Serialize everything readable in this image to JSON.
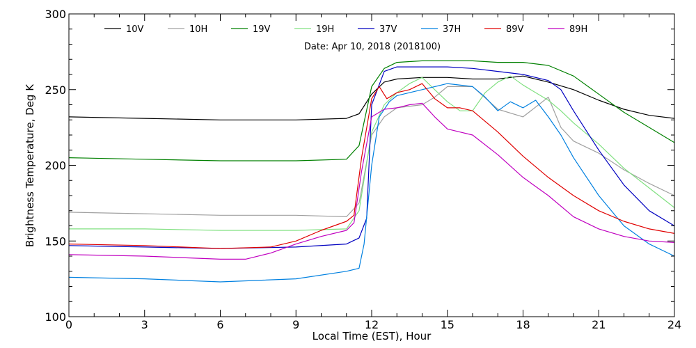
{
  "chart_data": {
    "type": "line",
    "title": "",
    "annotation": "Date: Apr 10, 2018 (2018100)",
    "xlabel": "Local Time (EST), Hour",
    "ylabel": "Brightness Temperature, Deg K",
    "xlim": [
      0,
      24
    ],
    "ylim": [
      100,
      300
    ],
    "xticks": [
      0,
      3,
      6,
      9,
      12,
      15,
      18,
      21,
      24
    ],
    "yticks": [
      100,
      150,
      200,
      250,
      300
    ],
    "grid": false,
    "legend_position": "top",
    "series": [
      {
        "name": "10V",
        "color": "#000000",
        "x": [
          0,
          3,
          6,
          9,
          11,
          11.5,
          12,
          12.5,
          13,
          14,
          15,
          16,
          17,
          18,
          19,
          20,
          21,
          22,
          23,
          24
        ],
        "y": [
          232,
          231,
          230,
          230,
          231,
          234,
          247,
          255,
          257,
          258,
          258,
          257,
          257,
          259,
          255,
          250,
          243,
          237,
          233,
          231
        ]
      },
      {
        "name": "10H",
        "color": "#a0a0a0",
        "x": [
          0,
          3,
          6,
          9,
          11,
          11.5,
          12,
          12.5,
          13,
          14,
          14.5,
          15,
          16,
          17,
          18,
          19,
          19.5,
          20,
          21,
          22,
          23,
          24
        ],
        "y": [
          169,
          168,
          167,
          167,
          166,
          175,
          220,
          232,
          238,
          240,
          245,
          252,
          252,
          237,
          232,
          245,
          225,
          216,
          208,
          197,
          188,
          180
        ]
      },
      {
        "name": "19V",
        "color": "#008000",
        "x": [
          0,
          3,
          6,
          9,
          11,
          11.5,
          12,
          12.5,
          13,
          14,
          15,
          16,
          17,
          18,
          19,
          20,
          21,
          22,
          23,
          24
        ],
        "y": [
          205,
          204,
          203,
          203,
          204,
          213,
          252,
          264,
          268,
          269,
          269,
          269,
          268,
          268,
          266,
          259,
          247,
          235,
          225,
          215
        ]
      },
      {
        "name": "19H",
        "color": "#80e080",
        "x": [
          0,
          3,
          6,
          9,
          11,
          11.5,
          12,
          12.5,
          13,
          13.5,
          14,
          14.5,
          15,
          15.5,
          16,
          16.5,
          17,
          17.5,
          18,
          18.5,
          19,
          19.5,
          20,
          21,
          22,
          23,
          24
        ],
        "y": [
          158,
          158,
          157,
          157,
          158,
          170,
          222,
          240,
          248,
          254,
          258,
          250,
          242,
          236,
          236,
          248,
          255,
          259,
          253,
          248,
          243,
          236,
          228,
          214,
          198,
          185,
          172
        ]
      },
      {
        "name": "37V",
        "color": "#0000c0",
        "x": [
          0,
          3,
          6,
          9,
          11,
          11.5,
          11.8,
          12,
          12.5,
          13,
          14,
          15,
          16,
          17,
          18,
          19,
          19.5,
          20,
          21,
          22,
          23,
          24
        ],
        "y": [
          147,
          146,
          145,
          146,
          148,
          152,
          165,
          240,
          262,
          265,
          265,
          265,
          264,
          262,
          260,
          256,
          250,
          236,
          210,
          187,
          170,
          160
        ]
      },
      {
        "name": "37H",
        "color": "#0080e0",
        "x": [
          0,
          3,
          6,
          9,
          11,
          11.5,
          11.7,
          12,
          12.3,
          12.7,
          13,
          14,
          15,
          16,
          16.5,
          17,
          17.5,
          18,
          18.5,
          19,
          19.5,
          20,
          21,
          22,
          23,
          24
        ],
        "y": [
          126,
          125,
          123,
          125,
          130,
          132,
          148,
          200,
          232,
          242,
          246,
          250,
          254,
          252,
          245,
          236,
          242,
          238,
          243,
          232,
          220,
          205,
          180,
          160,
          148,
          140
        ]
      },
      {
        "name": "89V",
        "color": "#e00000",
        "x": [
          0,
          3,
          6,
          8,
          9,
          10,
          11,
          11.3,
          11.6,
          12,
          12.3,
          12.6,
          13,
          13.5,
          14,
          14.5,
          15,
          15.5,
          16,
          17,
          18,
          19,
          20,
          21,
          22,
          23,
          24
        ],
        "y": [
          148,
          147,
          145,
          146,
          150,
          157,
          163,
          167,
          205,
          244,
          252,
          244,
          248,
          250,
          254,
          244,
          238,
          238,
          236,
          222,
          206,
          192,
          180,
          170,
          163,
          158,
          155
        ]
      },
      {
        "name": "89H",
        "color": "#c000c0",
        "x": [
          0,
          3,
          6,
          7,
          8,
          9,
          10,
          11,
          11.3,
          11.6,
          12,
          12.5,
          13,
          13.5,
          14,
          14.5,
          15,
          15.5,
          16,
          17,
          18,
          19,
          20,
          21,
          22,
          23,
          24
        ],
        "y": [
          141,
          140,
          138,
          138,
          142,
          148,
          153,
          157,
          162,
          196,
          232,
          237,
          238,
          240,
          241,
          232,
          224,
          222,
          220,
          207,
          192,
          180,
          166,
          158,
          153,
          150,
          149
        ]
      }
    ]
  }
}
